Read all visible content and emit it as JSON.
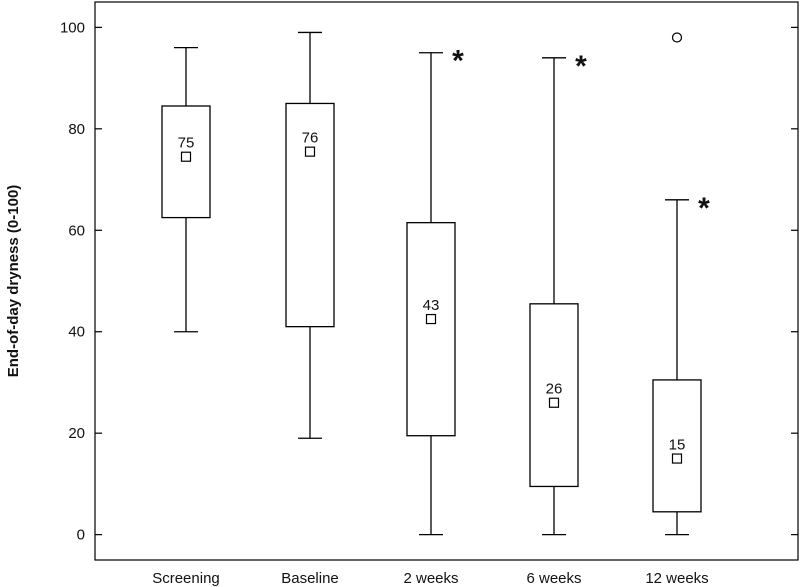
{
  "chart_data": {
    "type": "box",
    "title": "",
    "xlabel": "",
    "ylabel": "End-of-day dryness (0-100)",
    "ylim": [
      -5,
      105
    ],
    "yticks": [
      0,
      20,
      40,
      60,
      80,
      100
    ],
    "grid": false,
    "categories": [
      "Screening",
      "Baseline",
      "2 weeks",
      "6 weeks",
      "12 weeks"
    ],
    "boxes": [
      {
        "category": "Screening",
        "min": 40,
        "q1": 62.5,
        "q3": 84.5,
        "max": 96,
        "mean": 74.5,
        "mean_label": "75",
        "significant": false,
        "outliers": []
      },
      {
        "category": "Baseline",
        "min": 19,
        "q1": 41,
        "q3": 85,
        "max": 99,
        "mean": 75.5,
        "mean_label": "76",
        "significant": false,
        "outliers": []
      },
      {
        "category": "2 weeks",
        "min": 0,
        "q1": 19.5,
        "q3": 61.5,
        "max": 95,
        "mean": 42.5,
        "mean_label": "43",
        "significant": true,
        "outliers": []
      },
      {
        "category": "6 weeks",
        "min": 0,
        "q1": 9.5,
        "q3": 45.5,
        "max": 94,
        "mean": 26,
        "mean_label": "26",
        "significant": true,
        "outliers": []
      },
      {
        "category": "12 weeks",
        "min": 0,
        "q1": 4.5,
        "q3": 30.5,
        "max": 66,
        "mean": 15,
        "mean_label": "15",
        "significant": true,
        "outliers": [
          98
        ]
      }
    ],
    "significance_marker": "*",
    "colors": {
      "box_fill": "#ffffff",
      "stroke": "#000000"
    }
  }
}
